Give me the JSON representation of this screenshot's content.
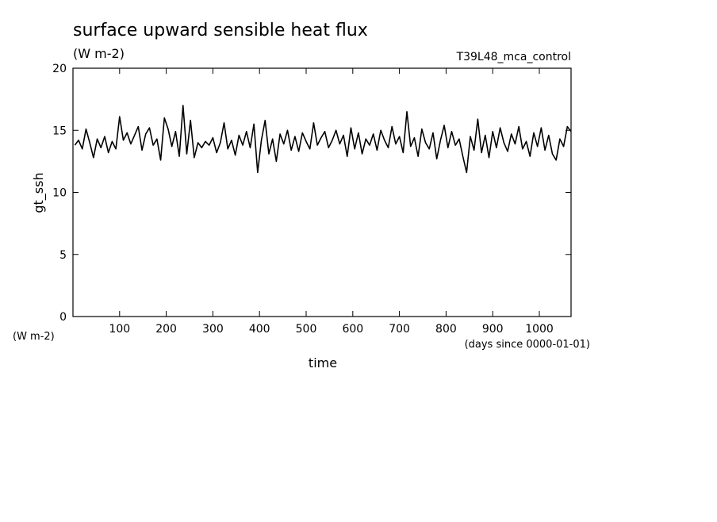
{
  "chart_data": {
    "type": "line",
    "title": "surface upward sensible heat flux",
    "subtitle": "(W m-2)",
    "annotation": "T39L48_mca_control",
    "y_label": "gt_ssh",
    "y_unit": "(W m-2)",
    "x_label": "time",
    "x_unit": "(days since 0000-01-01)",
    "xlim": [
      0,
      1068
    ],
    "xticks": [
      100,
      200,
      300,
      400,
      500,
      600,
      700,
      800,
      900,
      1000
    ],
    "ylim": [
      0,
      20
    ],
    "yticks": [
      0,
      5,
      10,
      15,
      20
    ],
    "x": [
      4,
      12,
      20,
      28,
      36,
      44,
      52,
      60,
      68,
      76,
      84,
      92,
      100,
      108,
      116,
      124,
      132,
      140,
      148,
      156,
      164,
      172,
      180,
      188,
      196,
      204,
      212,
      220,
      228,
      236,
      244,
      252,
      260,
      268,
      276,
      284,
      292,
      300,
      308,
      316,
      324,
      332,
      340,
      348,
      356,
      364,
      372,
      380,
      388,
      396,
      404,
      412,
      420,
      428,
      436,
      444,
      452,
      460,
      468,
      476,
      484,
      492,
      500,
      508,
      516,
      524,
      532,
      540,
      548,
      556,
      564,
      572,
      580,
      588,
      596,
      604,
      612,
      620,
      628,
      636,
      644,
      652,
      660,
      668,
      676,
      684,
      692,
      700,
      708,
      716,
      724,
      732,
      740,
      748,
      756,
      764,
      772,
      780,
      788,
      796,
      804,
      812,
      820,
      828,
      836,
      844,
      852,
      860,
      868,
      876,
      884,
      892,
      900,
      908,
      916,
      924,
      932,
      940,
      948,
      956,
      964,
      972,
      980,
      988,
      996,
      1004,
      1012,
      1020,
      1028,
      1036,
      1044,
      1052,
      1060,
      1068
    ],
    "series": [
      {
        "color": "#000000",
        "values": [
          13.8,
          14.2,
          13.5,
          15.1,
          14.0,
          12.8,
          14.3,
          13.6,
          14.5,
          13.2,
          14.1,
          13.5,
          16.1,
          14.2,
          14.8,
          13.9,
          14.6,
          15.3,
          13.4,
          14.7,
          15.2,
          13.8,
          14.3,
          12.6,
          16.0,
          15.1,
          13.7,
          14.9,
          12.9,
          17.0,
          13.1,
          15.8,
          12.8,
          14.0,
          13.6,
          14.1,
          13.8,
          14.4,
          13.2,
          14.0,
          15.6,
          13.5,
          14.2,
          13.0,
          14.6,
          13.8,
          14.9,
          13.6,
          15.5,
          11.6,
          14.2,
          15.8,
          13.1,
          14.3,
          12.5,
          14.7,
          13.9,
          15.0,
          13.4,
          14.5,
          13.3,
          14.8,
          14.1,
          13.5,
          15.6,
          13.8,
          14.4,
          14.9,
          13.6,
          14.2,
          15.0,
          13.9,
          14.6,
          12.9,
          15.2,
          13.5,
          14.8,
          13.1,
          14.3,
          13.8,
          14.7,
          13.4,
          15.0,
          14.2,
          13.6,
          15.3,
          13.9,
          14.5,
          13.2,
          16.5,
          13.7,
          14.4,
          12.9,
          15.1,
          14.0,
          13.5,
          14.8,
          12.7,
          14.2,
          15.4,
          13.6,
          14.9,
          13.8,
          14.3,
          12.9,
          11.6,
          14.5,
          13.4,
          15.9,
          13.2,
          14.6,
          12.8,
          14.9,
          13.6,
          15.2,
          14.0,
          13.3,
          14.7,
          13.9,
          15.3,
          13.5,
          14.1,
          12.9,
          14.8,
          13.7,
          15.2,
          13.4,
          14.6,
          13.1,
          12.6,
          14.3,
          13.7,
          15.3,
          14.9
        ]
      }
    ]
  }
}
